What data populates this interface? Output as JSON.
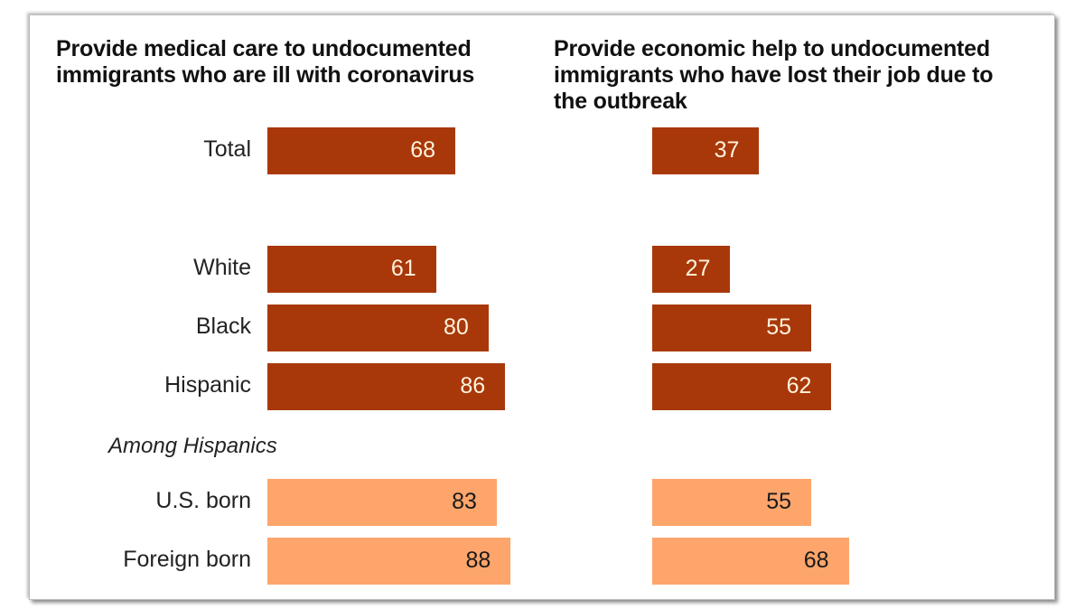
{
  "chart_data": [
    {
      "type": "bar",
      "orientation": "horizontal",
      "title": "Provide medical care to undocumented immigrants who are ill with coronavirus",
      "categories": [
        "Total",
        "White",
        "Black",
        "Hispanic",
        "U.S. born",
        "Foreign born"
      ],
      "values": [
        68,
        61,
        80,
        86,
        83,
        88
      ],
      "group_label": "Among Hispanics",
      "xlabel": "",
      "ylabel": "",
      "xlim": [
        0,
        100
      ]
    },
    {
      "type": "bar",
      "orientation": "horizontal",
      "title": "Provide economic help to undocumented immigrants who have lost their job due to the outbreak",
      "categories": [
        "Total",
        "White",
        "Black",
        "Hispanic",
        "U.S. born",
        "Foreign born"
      ],
      "values": [
        37,
        27,
        55,
        62,
        55,
        68
      ],
      "xlabel": "",
      "ylabel": "",
      "xlim": [
        0,
        100
      ]
    }
  ],
  "colors": {
    "main": "#a8380a",
    "hispanic_subgroup": "#fda56b"
  }
}
